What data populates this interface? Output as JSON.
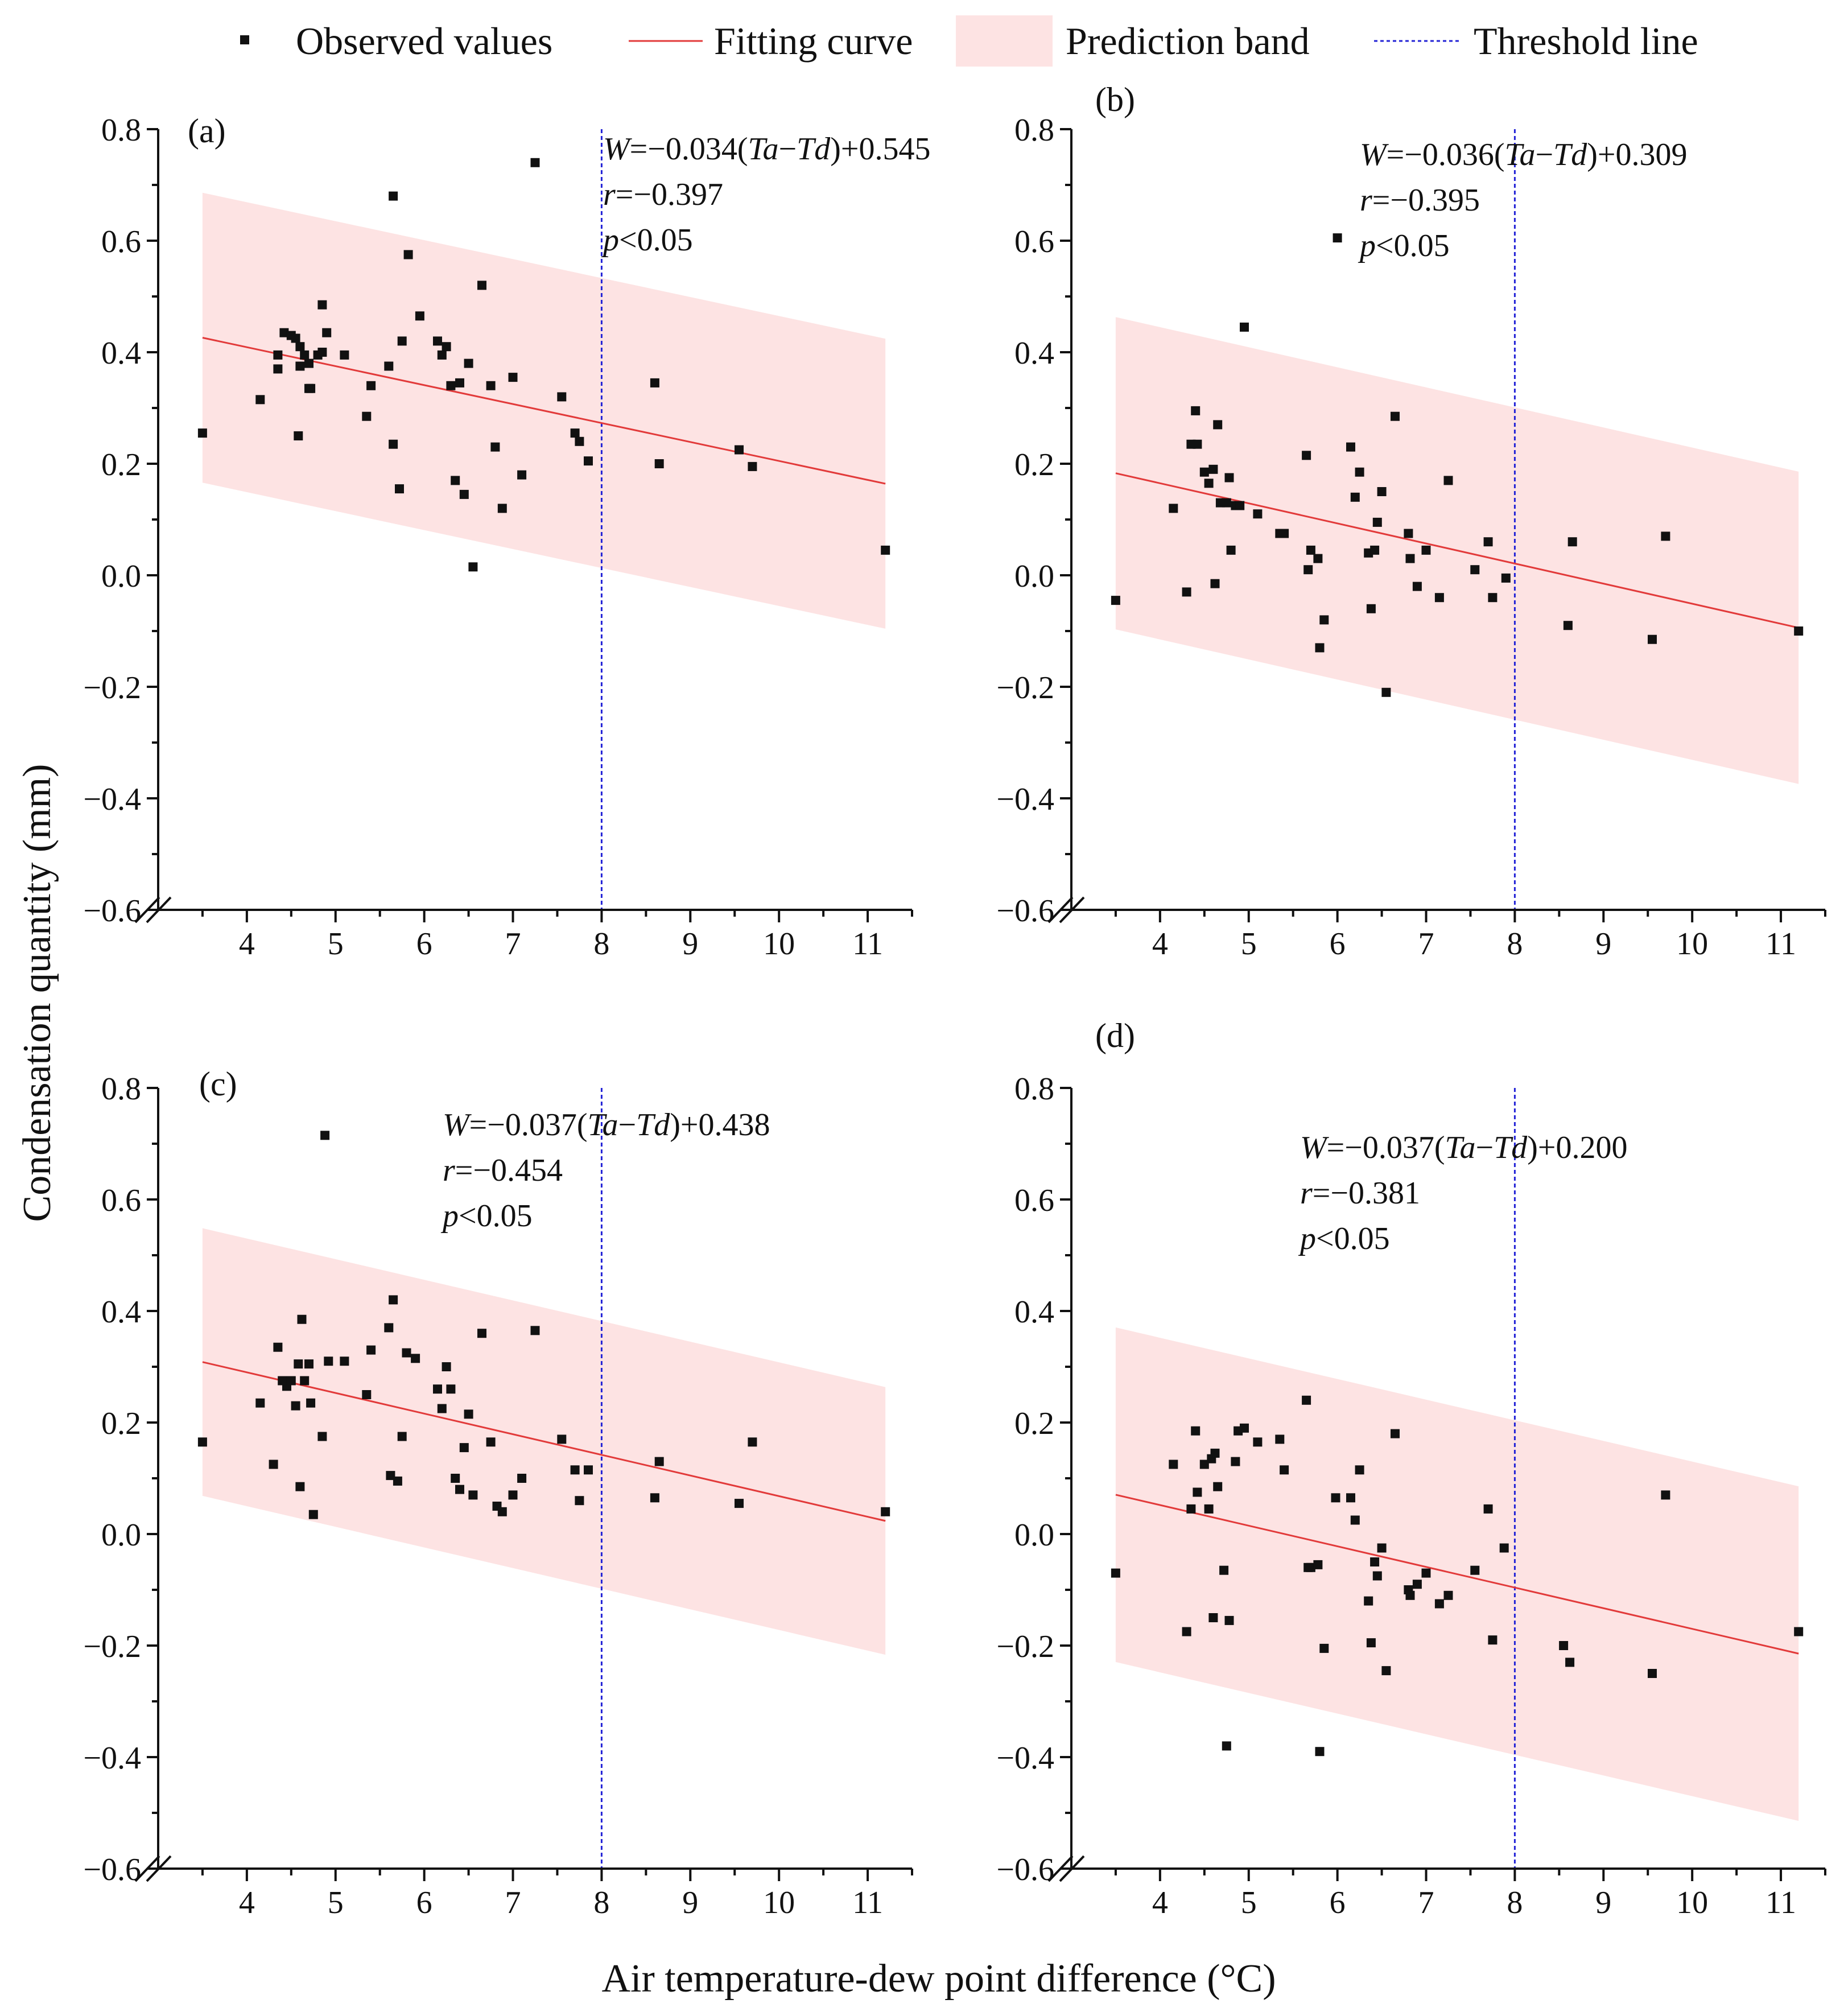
{
  "legend": {
    "observed_label": "Observed values",
    "fit_label": "Fitting curve",
    "band_label": "Prediction band",
    "threshold_label": "Threshold line"
  },
  "colors": {
    "points": "#111111",
    "fit": "#e23a3a",
    "band": "#fde3e3",
    "threshold": "#2323d6",
    "axis": "#111111"
  },
  "axes": {
    "xlabel": "Air temperature-dew point difference (°C)",
    "ylabel": "Condensation quantity (mm)",
    "xlim": [
      3.0,
      11.5
    ],
    "ylim": [
      -0.6,
      0.8
    ],
    "xticks": [
      4,
      5,
      6,
      7,
      8,
      9,
      10,
      11
    ],
    "yticks": [
      -0.6,
      -0.4,
      -0.2,
      0.0,
      0.2,
      0.4,
      0.6,
      0.8
    ],
    "ytick_labels": [
      "−0.6",
      "−0.4",
      "−0.2",
      "0.0",
      "0.2",
      "0.4",
      "0.6",
      "0.8"
    ]
  },
  "chart_data": [
    {
      "type": "scatter",
      "panel": "(a)",
      "equation": {
        "prefix": "W",
        "body": "=−0.034(",
        "v1": "Ta",
        "dash": "−",
        "v2": "Td",
        "tail": ")+0.545"
      },
      "r_text": {
        "sym": "r",
        "body": "=−0.397"
      },
      "p_text": {
        "sym": "p",
        "body": "<0.05"
      },
      "slope": -0.034,
      "intercept": 0.545,
      "band_halfwidth": 0.26,
      "fit_x_range": [
        3.5,
        11.2
      ],
      "threshold_x": 8,
      "x": [
        3.5,
        4.15,
        4.35,
        4.42,
        4.35,
        4.5,
        4.55,
        4.6,
        4.65,
        4.6,
        4.7,
        4.72,
        4.58,
        4.7,
        4.8,
        4.85,
        4.9,
        4.85,
        5.1,
        5.35,
        5.4,
        5.6,
        5.65,
        5.65,
        5.72,
        5.75,
        5.82,
        5.95,
        6.15,
        6.2,
        6.25,
        6.3,
        6.35,
        6.4,
        6.45,
        6.5,
        6.55,
        6.65,
        6.75,
        6.8,
        6.88,
        7.0,
        7.1,
        7.25,
        7.55,
        7.7,
        7.75,
        7.85,
        8.6,
        8.65,
        9.55,
        9.7,
        11.2
      ],
      "y": [
        0.255,
        0.315,
        0.37,
        0.435,
        0.395,
        0.43,
        0.425,
        0.41,
        0.395,
        0.375,
        0.335,
        0.335,
        0.25,
        0.38,
        0.395,
        0.485,
        0.435,
        0.4,
        0.395,
        0.285,
        0.34,
        0.375,
        0.68,
        0.235,
        0.155,
        0.42,
        0.575,
        0.465,
        0.42,
        0.395,
        0.41,
        0.34,
        0.17,
        0.345,
        0.145,
        0.38,
        0.015,
        0.52,
        0.34,
        0.23,
        0.12,
        0.355,
        0.18,
        0.74,
        0.32,
        0.255,
        0.24,
        0.205,
        0.345,
        0.2,
        0.225,
        0.195,
        0.045
      ]
    },
    {
      "type": "scatter",
      "panel": "(b)",
      "equation": {
        "prefix": "W",
        "body": "=−0.036(",
        "v1": "Ta",
        "dash": "−",
        "v2": "Td",
        "tail": ")+0.309"
      },
      "r_text": {
        "sym": "r",
        "body": "=−0.395"
      },
      "p_text": {
        "sym": "p",
        "body": "<0.05"
      },
      "slope": -0.036,
      "intercept": 0.309,
      "band_halfwidth": 0.28,
      "fit_x_range": [
        3.5,
        11.2
      ],
      "threshold_x": 8,
      "x": [
        3.5,
        4.15,
        4.3,
        4.35,
        4.4,
        4.42,
        4.5,
        4.55,
        4.6,
        4.62,
        4.65,
        4.68,
        4.75,
        4.78,
        4.8,
        4.85,
        4.9,
        4.95,
        5.1,
        5.35,
        5.4,
        5.65,
        5.67,
        5.7,
        5.78,
        5.8,
        5.85,
        6.0,
        6.15,
        6.2,
        6.25,
        6.35,
        6.38,
        6.42,
        6.45,
        6.5,
        6.55,
        6.65,
        6.8,
        6.82,
        6.9,
        7.0,
        7.15,
        7.25,
        7.55,
        7.7,
        7.75,
        7.9,
        8.6,
        8.65,
        9.55,
        9.7,
        11.2
      ],
      "y": [
        -0.045,
        0.12,
        -0.03,
        0.235,
        0.295,
        0.235,
        0.185,
        0.165,
        0.19,
        -0.015,
        0.27,
        0.13,
        0.13,
        0.175,
        0.045,
        0.125,
        0.125,
        0.445,
        0.11,
        0.075,
        0.075,
        0.215,
        0.01,
        0.045,
        0.03,
        -0.13,
        -0.08,
        0.605,
        0.23,
        0.14,
        0.185,
        0.04,
        -0.06,
        0.045,
        0.095,
        0.15,
        -0.21,
        0.285,
        0.075,
        0.03,
        -0.02,
        0.045,
        -0.04,
        0.17,
        0.01,
        0.06,
        -0.04,
        -0.005,
        -0.09,
        0.06,
        -0.115,
        0.07,
        -0.1
      ]
    },
    {
      "type": "scatter",
      "panel": "(c)",
      "equation": {
        "prefix": "W",
        "body": "=−0.037(",
        "v1": "Ta",
        "dash": "−",
        "v2": "Td",
        "tail": ")+0.438"
      },
      "r_text": {
        "sym": "r",
        "body": "=−0.454"
      },
      "p_text": {
        "sym": "p",
        "body": "<0.05"
      },
      "slope": -0.037,
      "intercept": 0.438,
      "band_halfwidth": 0.24,
      "fit_x_range": [
        3.5,
        11.2
      ],
      "threshold_x": 8,
      "x": [
        3.5,
        4.15,
        4.3,
        4.35,
        4.4,
        4.45,
        4.5,
        4.55,
        4.58,
        4.6,
        4.62,
        4.65,
        4.7,
        4.72,
        4.75,
        4.85,
        4.88,
        4.92,
        5.1,
        5.35,
        5.4,
        5.6,
        5.62,
        5.65,
        5.7,
        5.75,
        5.8,
        5.9,
        6.15,
        6.2,
        6.25,
        6.3,
        6.35,
        6.4,
        6.45,
        6.5,
        6.55,
        6.65,
        6.75,
        6.82,
        6.88,
        7.0,
        7.1,
        7.25,
        7.55,
        7.7,
        7.75,
        7.85,
        8.6,
        8.65,
        9.55,
        9.7,
        11.2
      ],
      "y": [
        0.165,
        0.235,
        0.125,
        0.335,
        0.275,
        0.265,
        0.275,
        0.23,
        0.305,
        0.085,
        0.385,
        0.275,
        0.305,
        0.235,
        0.035,
        0.175,
        0.715,
        0.31,
        0.31,
        0.25,
        0.33,
        0.37,
        0.105,
        0.42,
        0.095,
        0.175,
        0.325,
        0.315,
        0.26,
        0.225,
        0.3,
        0.26,
        0.1,
        0.08,
        0.155,
        0.215,
        0.07,
        0.36,
        0.165,
        0.05,
        0.04,
        0.07,
        0.1,
        0.365,
        0.17,
        0.115,
        0.06,
        0.115,
        0.065,
        0.13,
        0.055,
        0.165,
        0.04
      ]
    },
    {
      "type": "scatter",
      "panel": "(d)",
      "equation": {
        "prefix": "W",
        "body": "=−0.037(",
        "v1": "Ta",
        "dash": "−",
        "v2": "Td",
        "tail": ")+0.200"
      },
      "r_text": {
        "sym": "r",
        "body": "=−0.381"
      },
      "p_text": {
        "sym": "p",
        "body": "<0.05"
      },
      "slope": -0.037,
      "intercept": 0.2,
      "band_halfwidth": 0.3,
      "fit_x_range": [
        3.5,
        11.2
      ],
      "threshold_x": 8,
      "x": [
        3.5,
        4.15,
        4.3,
        4.35,
        4.4,
        4.42,
        4.5,
        4.55,
        4.58,
        4.6,
        4.62,
        4.65,
        4.72,
        4.75,
        4.78,
        4.85,
        4.88,
        4.95,
        5.1,
        5.35,
        5.4,
        5.65,
        5.67,
        5.7,
        5.78,
        5.8,
        5.85,
        5.98,
        6.15,
        6.2,
        6.25,
        6.35,
        6.38,
        6.42,
        6.45,
        6.5,
        6.55,
        6.65,
        6.8,
        6.82,
        6.9,
        7.0,
        7.15,
        7.25,
        7.55,
        7.7,
        7.75,
        7.88,
        8.55,
        8.62,
        9.55,
        9.7,
        11.2
      ],
      "y": [
        -0.07,
        0.125,
        -0.175,
        0.045,
        0.185,
        0.075,
        0.125,
        0.045,
        0.135,
        -0.15,
        0.145,
        0.085,
        -0.065,
        -0.38,
        -0.155,
        0.13,
        0.185,
        0.19,
        0.165,
        0.17,
        0.115,
        0.24,
        -0.06,
        -0.06,
        -0.055,
        -0.39,
        -0.205,
        0.065,
        0.065,
        0.025,
        0.115,
        -0.12,
        -0.195,
        -0.05,
        -0.075,
        -0.025,
        -0.245,
        0.18,
        -0.1,
        -0.11,
        -0.09,
        -0.07,
        -0.125,
        -0.11,
        -0.065,
        0.045,
        -0.19,
        -0.025,
        -0.2,
        -0.23,
        -0.25,
        0.07,
        -0.175
      ]
    }
  ]
}
